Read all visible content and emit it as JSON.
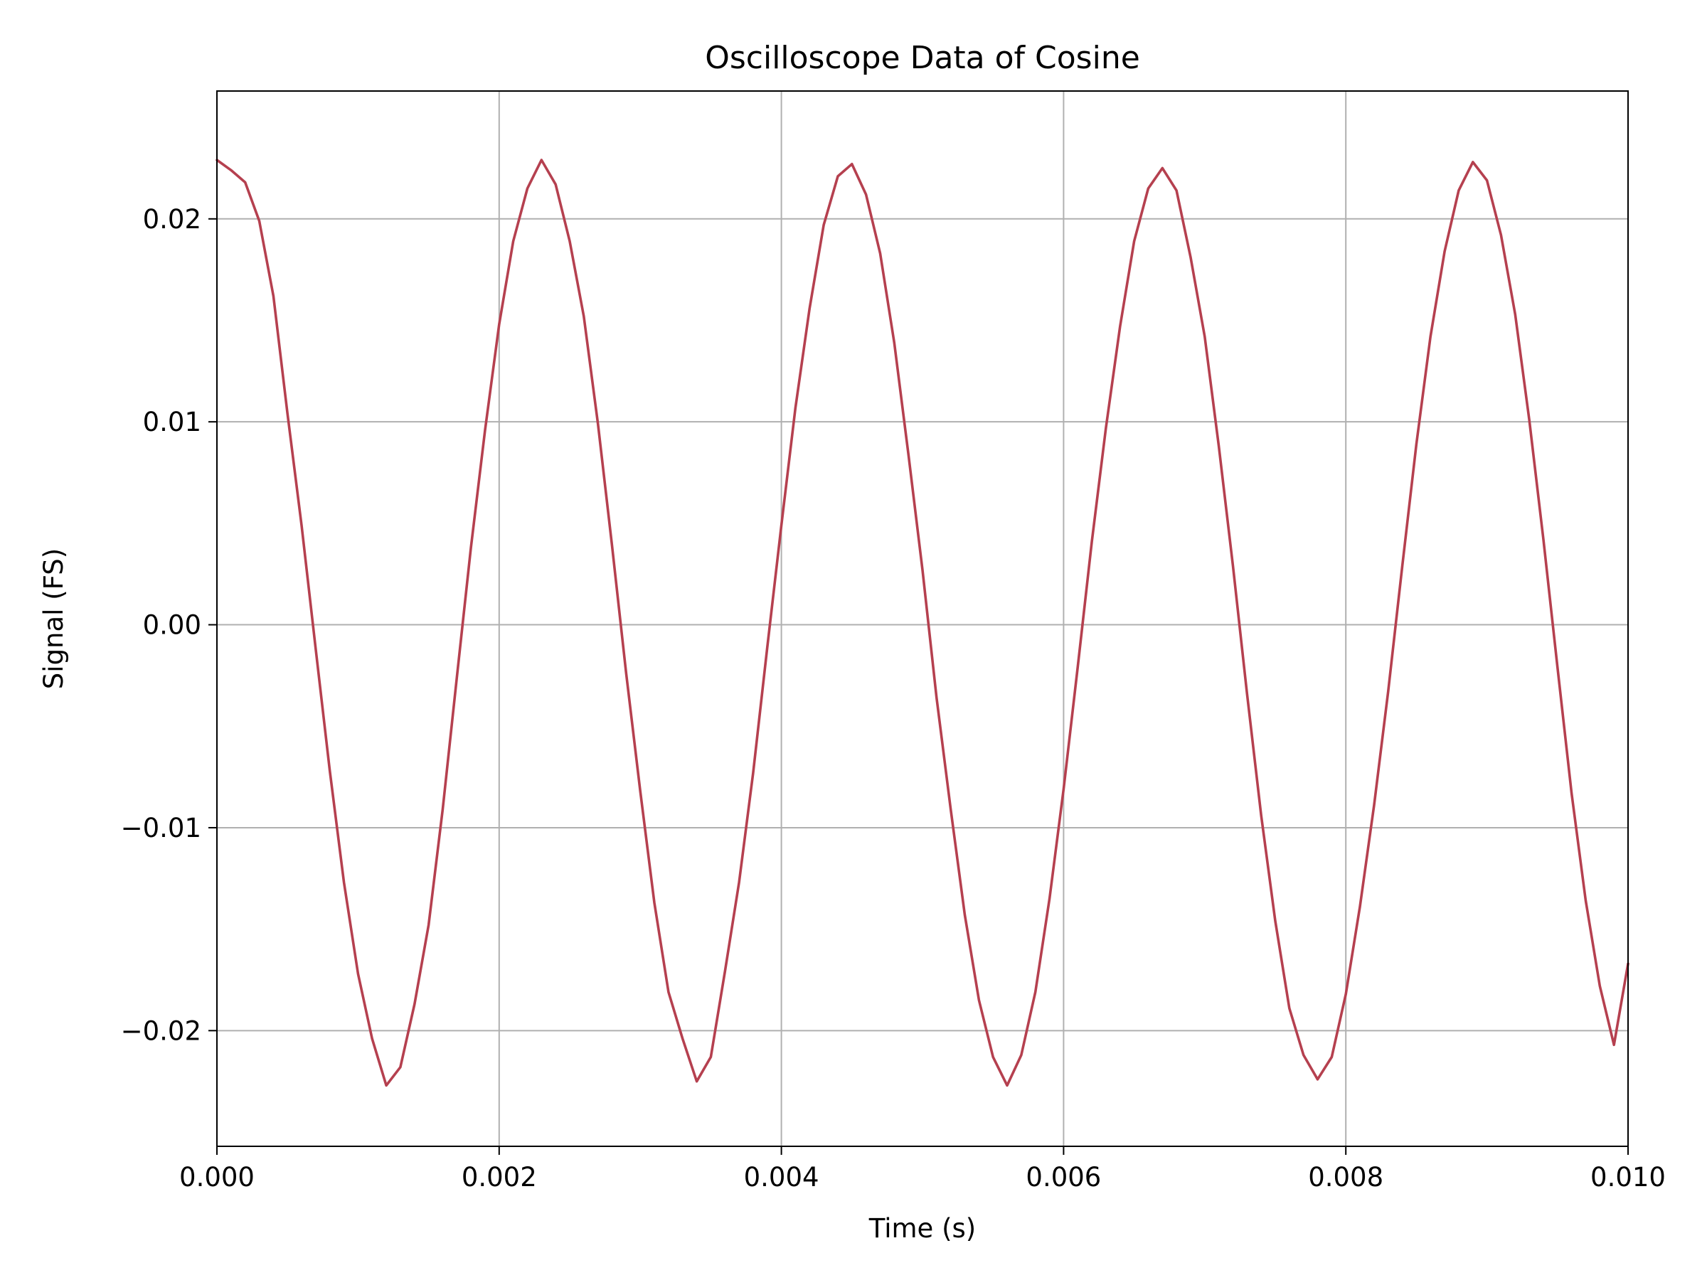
{
  "chart_data": {
    "type": "line",
    "title": "Oscilloscope Data of Cosine",
    "xlabel": "Time (s)",
    "ylabel": "Signal (FS)",
    "xlim": [
      0.0,
      0.01
    ],
    "ylim": [
      -0.0257,
      0.0263
    ],
    "grid": true,
    "x_ticks": [
      0.0,
      0.002,
      0.004,
      0.006,
      0.008,
      0.01
    ],
    "x_tick_labels": [
      "0.000",
      "0.002",
      "0.004",
      "0.006",
      "0.008",
      "0.010"
    ],
    "y_ticks": [
      -0.02,
      -0.01,
      0.0,
      0.01,
      0.02
    ],
    "y_tick_labels": [
      "−0.02",
      "−0.01",
      "0.00",
      "0.01",
      "0.02"
    ],
    "colors": {
      "signal": "#b5404f"
    },
    "series": [
      {
        "x": [
          0.0,
          0.0001,
          0.0002,
          0.0003,
          0.0004,
          0.0005,
          0.0006,
          0.0007,
          0.0008,
          0.0009,
          0.001,
          0.0011,
          0.0012,
          0.0013,
          0.0014,
          0.0015,
          0.0016,
          0.0017,
          0.0018,
          0.0019,
          0.002,
          0.0021,
          0.0022,
          0.0023,
          0.0024,
          0.0025,
          0.0026,
          0.0027,
          0.0028,
          0.0029,
          0.003,
          0.0031,
          0.0032,
          0.0033,
          0.0034,
          0.0035,
          0.0036,
          0.0037,
          0.0038,
          0.0039,
          0.004,
          0.0041,
          0.0042,
          0.0043,
          0.0044,
          0.0045,
          0.0046,
          0.0047,
          0.0048,
          0.0049,
          0.005,
          0.0051,
          0.0052,
          0.0053,
          0.0054,
          0.0055,
          0.0056,
          0.0057,
          0.0058,
          0.0059,
          0.006,
          0.0061,
          0.0062,
          0.0063,
          0.0064,
          0.0065,
          0.0066,
          0.0067,
          0.0068,
          0.0069,
          0.007,
          0.0071,
          0.0072,
          0.0073,
          0.0074,
          0.0075,
          0.0076,
          0.0077,
          0.0078,
          0.0079,
          0.008,
          0.0081,
          0.0082,
          0.0083,
          0.0084,
          0.0085,
          0.0086,
          0.0087,
          0.0088,
          0.0089,
          0.009,
          0.0091,
          0.0092,
          0.0093,
          0.0094,
          0.0095,
          0.0096,
          0.0097,
          0.0098,
          0.0099,
          0.01
        ],
        "y": [
          0.0229,
          0.0224,
          0.0218,
          0.0199,
          0.0162,
          0.0104,
          0.0049,
          -0.0012,
          -0.0072,
          -0.0127,
          -0.0172,
          -0.0204,
          -0.0227,
          -0.0218,
          -0.0187,
          -0.0148,
          -0.0091,
          -0.0026,
          0.0038,
          0.0096,
          0.0148,
          0.0189,
          0.0215,
          0.0229,
          0.0217,
          0.0189,
          0.0152,
          0.0099,
          0.0039,
          -0.0024,
          -0.0082,
          -0.0137,
          -0.0181,
          -0.0204,
          -0.0225,
          -0.0213,
          -0.0171,
          -0.0127,
          -0.0073,
          -0.0011,
          0.0049,
          0.0107,
          0.0156,
          0.0197,
          0.0221,
          0.0227,
          0.0212,
          0.0183,
          0.0139,
          0.0084,
          0.0027,
          -0.0036,
          -0.0091,
          -0.0143,
          -0.0185,
          -0.0213,
          -0.0227,
          -0.0212,
          -0.0181,
          -0.0135,
          -0.0081,
          -0.0021,
          0.0041,
          0.0097,
          0.0147,
          0.0189,
          0.0215,
          0.0225,
          0.0214,
          0.0181,
          0.0142,
          0.0088,
          0.0029,
          -0.0034,
          -0.0094,
          -0.0146,
          -0.0189,
          -0.0212,
          -0.0224,
          -0.0213,
          -0.0182,
          -0.0139,
          -0.0089,
          -0.0033,
          0.0029,
          0.0089,
          0.0142,
          0.0184,
          0.0214,
          0.0228,
          0.0219,
          0.0192,
          0.0153,
          0.0101,
          0.0042,
          -0.0021,
          -0.0083,
          -0.0136,
          -0.0178,
          -0.0207,
          -0.0167
        ]
      }
    ]
  }
}
